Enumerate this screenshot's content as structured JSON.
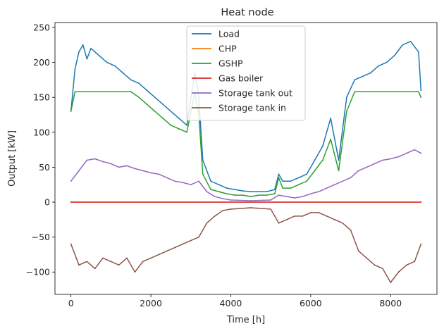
{
  "chart_data": {
    "type": "line",
    "title": "Heat node",
    "xlabel": "Time [h]",
    "ylabel": "Output [kW]",
    "xlim": [
      -400,
      9160
    ],
    "ylim": [
      -132,
      257
    ],
    "xticks": [
      0,
      2000,
      4000,
      6000,
      8000
    ],
    "yticks": [
      -100,
      -50,
      0,
      50,
      100,
      150,
      200,
      250
    ],
    "grid": false,
    "legend": "upper center",
    "series": [
      {
        "name": "Load",
        "color": "#1f77b4",
        "x": [
          0,
          100,
          200,
          300,
          400,
          500,
          700,
          900,
          1100,
          1300,
          1500,
          1700,
          1900,
          2100,
          2300,
          2500,
          2700,
          2900,
          3100,
          3200,
          3300,
          3500,
          3700,
          3900,
          4100,
          4300,
          4500,
          4700,
          4900,
          5100,
          5200,
          5300,
          5500,
          5700,
          5900,
          6100,
          6300,
          6500,
          6700,
          6900,
          7100,
          7300,
          7500,
          7700,
          7900,
          8100,
          8300,
          8500,
          8700,
          8760
        ],
        "y": [
          130,
          190,
          215,
          225,
          205,
          220,
          210,
          200,
          195,
          185,
          175,
          170,
          160,
          150,
          140,
          130,
          120,
          110,
          185,
          150,
          60,
          30,
          25,
          20,
          18,
          16,
          15,
          15,
          15,
          18,
          40,
          30,
          30,
          35,
          40,
          60,
          80,
          120,
          60,
          150,
          175,
          180,
          185,
          195,
          200,
          210,
          225,
          230,
          215,
          160
        ]
      },
      {
        "name": "CHP",
        "color": "#ff7f0e",
        "x": [
          0,
          8760
        ],
        "y": [
          0,
          0
        ]
      },
      {
        "name": "GSHP",
        "color": "#2ca02c",
        "x": [
          0,
          100,
          200,
          300,
          400,
          500,
          700,
          900,
          1100,
          1300,
          1500,
          1700,
          1900,
          2100,
          2300,
          2500,
          2700,
          2900,
          3100,
          3200,
          3300,
          3500,
          3700,
          3900,
          4100,
          4300,
          4500,
          4700,
          4900,
          5100,
          5200,
          5300,
          5500,
          5700,
          5900,
          6100,
          6300,
          6500,
          6700,
          6900,
          7100,
          7300,
          7500,
          7700,
          7900,
          8100,
          8300,
          8500,
          8700,
          8760
        ],
        "y": [
          130,
          158,
          158,
          158,
          158,
          158,
          158,
          158,
          158,
          158,
          158,
          150,
          140,
          130,
          120,
          110,
          105,
          100,
          158,
          125,
          40,
          18,
          15,
          12,
          10,
          10,
          8,
          10,
          10,
          12,
          35,
          20,
          20,
          25,
          30,
          45,
          60,
          90,
          45,
          130,
          158,
          158,
          158,
          158,
          158,
          158,
          158,
          158,
          158,
          150
        ]
      },
      {
        "name": "Gas boiler",
        "color": "#d62728",
        "x": [
          0,
          8760
        ],
        "y": [
          0,
          0
        ]
      },
      {
        "name": "Storage tank out",
        "color": "#9467bd",
        "x": [
          0,
          200,
          400,
          600,
          800,
          1000,
          1200,
          1400,
          1600,
          1800,
          2000,
          2200,
          2400,
          2600,
          2800,
          3000,
          3200,
          3400,
          3600,
          3800,
          4000,
          4500,
          5000,
          5200,
          5400,
          5600,
          5800,
          6000,
          6200,
          6400,
          6600,
          6800,
          7000,
          7200,
          7400,
          7600,
          7800,
          8000,
          8200,
          8400,
          8600,
          8760
        ],
        "y": [
          30,
          45,
          60,
          62,
          58,
          55,
          50,
          52,
          48,
          45,
          42,
          40,
          35,
          30,
          28,
          25,
          30,
          15,
          8,
          5,
          3,
          2,
          3,
          10,
          8,
          6,
          8,
          12,
          15,
          20,
          25,
          30,
          35,
          45,
          50,
          55,
          60,
          62,
          65,
          70,
          75,
          70
        ]
      },
      {
        "name": "Storage tank in",
        "color": "#8c564b",
        "x": [
          0,
          200,
          400,
          600,
          800,
          1000,
          1200,
          1400,
          1600,
          1800,
          2000,
          2200,
          2400,
          2600,
          2800,
          3000,
          3200,
          3400,
          3600,
          3800,
          4000,
          4500,
          5000,
          5200,
          5400,
          5600,
          5800,
          6000,
          6200,
          6400,
          6600,
          6800,
          7000,
          7200,
          7400,
          7600,
          7800,
          8000,
          8200,
          8400,
          8600,
          8760
        ],
        "y": [
          -60,
          -90,
          -85,
          -95,
          -80,
          -85,
          -90,
          -80,
          -100,
          -85,
          -80,
          -75,
          -70,
          -65,
          -60,
          -55,
          -50,
          -30,
          -20,
          -12,
          -10,
          -8,
          -10,
          -30,
          -25,
          -20,
          -20,
          -15,
          -15,
          -20,
          -25,
          -30,
          -40,
          -70,
          -80,
          -90,
          -95,
          -115,
          -100,
          -90,
          -85,
          -60
        ]
      }
    ]
  }
}
